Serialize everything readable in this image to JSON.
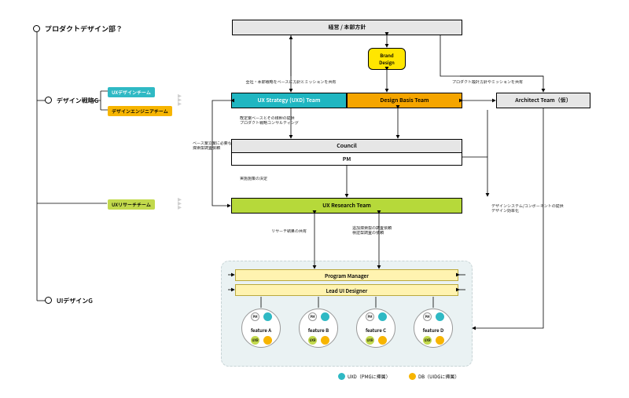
{
  "title": "プロダクトデザイン部？",
  "sideTree": {
    "root": "プロダクトデザイン部？",
    "group1": {
      "label": "デザイン戦略G",
      "tags": [
        {
          "text": "UXデザインチーム",
          "bg": "#2fb9c4",
          "fg": "#ffffff"
        },
        {
          "text": "デザインエンジニアチーム",
          "bg": "#f7b500",
          "fg": "#000000"
        }
      ]
    },
    "group2": {
      "label": "UXリサーチチーム",
      "tagBg": "#c2d94c",
      "tagFg": "#000000"
    },
    "group3": {
      "label": "UIデザインG"
    }
  },
  "boxes": {
    "topPolicy": {
      "text": "経営 / 本部方針",
      "bg": "#e6e6e6",
      "border": "#000000"
    },
    "brandDesign": {
      "text": "Brand\nDesign",
      "bg": "#ffe600",
      "border": "#000000",
      "radius": 6
    },
    "uxdTeam": {
      "text": "UX Strategy (UXD) Team",
      "bg": "#1fb6c1",
      "fg": "#ffffff",
      "border": "#000000"
    },
    "basisTeam": {
      "text": "Design Basis Team",
      "bg": "#f5a500",
      "fg": "#000000",
      "border": "#000000"
    },
    "architect": {
      "text": "Architect Team（仮）",
      "bg": "#e6e6e6",
      "border": "#000000"
    },
    "council": {
      "text": "Council",
      "bg": "#e6e6e6",
      "border": "#000000"
    },
    "pm": {
      "text": "PM",
      "bg": "#ffffff",
      "border": "#000000"
    },
    "uxResearch": {
      "text": "UX Research Team",
      "bg": "#b6d93a",
      "border": "#000000"
    },
    "programMgr": {
      "text": "Program Manager",
      "bg": "#fff3b0",
      "border": "#bba93e"
    },
    "leadUI": {
      "text": "Lead UI Designer",
      "bg": "#fff3b0",
      "border": "#bba93e"
    }
  },
  "edgeLabels": {
    "topLeft": "全社・本部戦略をベースに方針とミッションを共有",
    "topRight": "プロダクト設計方針やミッションを共有",
    "uxdBelow": "既定案ベースとその根幹の提供\nプロダクト戦略コンサルティング",
    "councilBelow": "実施施策の決定",
    "leftLoop": "ベース案立案に必要な\n探索型調査依頼",
    "researchL": "リサーチ結果の共有",
    "researchR": "追加探索型の調査依頼\n検証型調査の依頼",
    "rightSide": "デザインシステム/コンポーネントの提供\nデザイン効率化"
  },
  "features": [
    "feature A",
    "feature B",
    "feature C",
    "feature D"
  ],
  "featureDots": {
    "pm": {
      "label": "PM",
      "bg": "#ffffff",
      "border": "#999999"
    },
    "uxd": {
      "label": "",
      "bg": "#2fb9c4"
    },
    "uxr": {
      "label": "UXR",
      "bg": "#c2d94c"
    },
    "db": {
      "label": "",
      "bg": "#f7b500"
    }
  },
  "legend": {
    "uxd": {
      "color": "#2fb9c4",
      "text": "UXD（PMGに帰属）"
    },
    "db": {
      "color": "#f7b500",
      "text": "DB（UIDGに帰属）"
    }
  },
  "colors": {
    "featurePanelBg": "#eaf2f3",
    "featurePanelBorder": "#c8d4d6",
    "arrow": "#000000"
  }
}
